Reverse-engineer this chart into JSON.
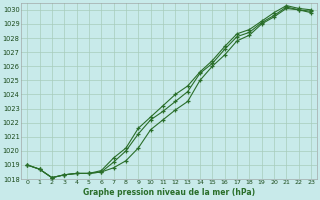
{
  "title": "Graphe pression niveau de la mer (hPa)",
  "ylim": [
    1018,
    1030.5
  ],
  "xlim": [
    -0.5,
    23.5
  ],
  "yticks": [
    1018,
    1019,
    1020,
    1021,
    1022,
    1023,
    1024,
    1025,
    1026,
    1027,
    1028,
    1029,
    1030
  ],
  "xticks": [
    0,
    1,
    2,
    3,
    4,
    5,
    6,
    7,
    8,
    9,
    10,
    11,
    12,
    13,
    14,
    15,
    16,
    17,
    18,
    19,
    20,
    21,
    22,
    23
  ],
  "bg_color": "#c8eaea",
  "grid_color": "#a8ccbb",
  "line_color": "#2a6e2a",
  "series1_x": [
    0,
    1,
    2,
    3,
    4,
    5,
    6,
    7,
    8,
    9,
    10,
    11,
    12,
    13,
    14,
    15,
    16,
    17,
    18,
    19,
    20,
    21,
    22,
    23
  ],
  "series1_y": [
    1019.0,
    1018.7,
    1018.1,
    1018.3,
    1018.4,
    1018.4,
    1018.5,
    1018.8,
    1019.3,
    1020.2,
    1021.5,
    1022.2,
    1022.9,
    1023.5,
    1025.0,
    1026.0,
    1026.8,
    1027.8,
    1028.2,
    1029.0,
    1029.5,
    1030.1,
    1030.0,
    1029.8
  ],
  "series2_x": [
    0,
    1,
    2,
    3,
    4,
    5,
    6,
    7,
    8,
    9,
    10,
    11,
    12,
    13,
    14,
    15,
    16,
    17,
    18,
    19,
    20,
    21,
    22,
    23
  ],
  "series2_y": [
    1019.0,
    1018.7,
    1018.1,
    1018.3,
    1018.4,
    1018.4,
    1018.5,
    1019.2,
    1020.0,
    1021.2,
    1022.2,
    1022.8,
    1023.5,
    1024.2,
    1025.5,
    1026.2,
    1027.2,
    1028.1,
    1028.4,
    1029.1,
    1029.6,
    1030.2,
    1030.0,
    1029.9
  ],
  "series3_x": [
    0,
    1,
    2,
    3,
    4,
    5,
    6,
    7,
    8,
    9,
    10,
    11,
    12,
    13,
    14,
    15,
    16,
    17,
    18,
    19,
    20,
    21,
    22,
    23
  ],
  "series3_y": [
    1019.0,
    1018.7,
    1018.1,
    1018.3,
    1018.4,
    1018.4,
    1018.6,
    1019.5,
    1020.2,
    1021.6,
    1022.4,
    1023.2,
    1024.0,
    1024.6,
    1025.6,
    1026.4,
    1027.4,
    1028.3,
    1028.6,
    1029.2,
    1029.8,
    1030.3,
    1030.1,
    1030.0
  ]
}
